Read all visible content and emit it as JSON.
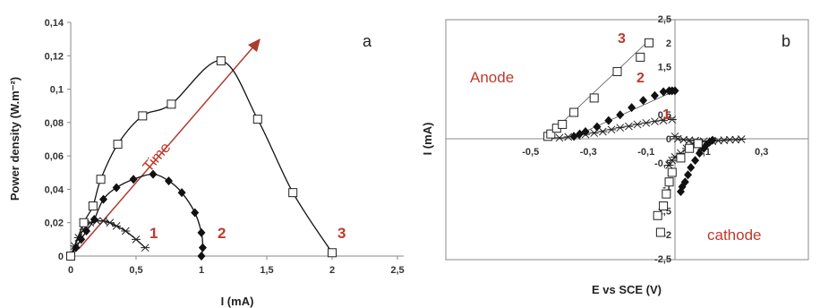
{
  "chart_data": [
    {
      "type": "scatter",
      "panel_label": "a",
      "xlabel": "I (mA)",
      "ylabel": "Power density (W.m⁻²)",
      "xlim": [
        0,
        2.5
      ],
      "ylim": [
        0,
        0.14
      ],
      "xticks": [
        "0",
        "0,5",
        "1",
        "1,5",
        "2",
        "2,5"
      ],
      "yticks": [
        "0",
        "0,02",
        "0,04",
        "0,06",
        "0,08",
        "0,1",
        "0,12",
        "0,14"
      ],
      "grid": false,
      "arrow_label": "Time",
      "series": [
        {
          "name": "1",
          "marker": "star",
          "smooth": true,
          "x": [
            0,
            0.03,
            0.06,
            0.1,
            0.15,
            0.2,
            0.25,
            0.3,
            0.35,
            0.42,
            0.5,
            0.57
          ],
          "y": [
            0,
            0.006,
            0.011,
            0.016,
            0.02,
            0.021,
            0.021,
            0.02,
            0.018,
            0.015,
            0.01,
            0.005
          ]
        },
        {
          "name": "2",
          "marker": "diamond",
          "smooth": true,
          "x": [
            0,
            0.04,
            0.08,
            0.12,
            0.18,
            0.25,
            0.35,
            0.48,
            0.63,
            0.75,
            0.85,
            0.95,
            1.0,
            1.01,
            1.0
          ],
          "y": [
            0,
            0.005,
            0.01,
            0.015,
            0.022,
            0.034,
            0.041,
            0.046,
            0.049,
            0.045,
            0.038,
            0.026,
            0.014,
            0.005,
            0
          ]
        },
        {
          "name": "3",
          "marker": "square",
          "smooth": true,
          "x": [
            0,
            0.1,
            0.17,
            0.23,
            0.36,
            0.55,
            0.77,
            1.15,
            1.43,
            1.7,
            2.0
          ],
          "y": [
            0,
            0.02,
            0.03,
            0.046,
            0.067,
            0.084,
            0.091,
            0.117,
            0.082,
            0.038,
            0.002
          ]
        }
      ]
    },
    {
      "type": "scatter",
      "panel_label": "b",
      "xlabel": "E vs SCE (V)",
      "ylabel": "I (mA)",
      "xlim": [
        -0.5,
        0.3
      ],
      "ylim": [
        -2.5,
        2.5
      ],
      "xticks": [
        "-0,5",
        "-0,3",
        "-0,1",
        "0,1",
        "0,3"
      ],
      "yticks": [
        "2,5",
        "2",
        "1,5",
        "1",
        "0,5",
        "0",
        "-0,5",
        "-1",
        "-1,5",
        "-2",
        "-2,5"
      ],
      "grid": false,
      "annotations": [
        "Anode",
        "cathode"
      ],
      "series": [
        {
          "name": "1",
          "marker": "star",
          "x": [
            -0.4,
            -0.37,
            -0.34,
            -0.31,
            -0.28,
            -0.25,
            -0.22,
            -0.19,
            -0.16,
            -0.13,
            -0.1,
            -0.07,
            -0.04,
            -0.01,
            0.0,
            0.01,
            0.03,
            0.05,
            0.07,
            0.1,
            0.13,
            0.15,
            0.17,
            0.19,
            0.21,
            0.23,
            -0.02,
            -0.01,
            0.0,
            0.02,
            0.04,
            0.06
          ],
          "y": [
            0.02,
            0.04,
            0.06,
            0.09,
            0.12,
            0.15,
            0.19,
            0.23,
            0.26,
            0.3,
            0.33,
            0.36,
            0.38,
            0.4,
            0.05,
            0.0,
            -0.02,
            -0.03,
            -0.04,
            -0.05,
            -0.05,
            -0.04,
            -0.03,
            -0.02,
            -0.02,
            -0.01,
            -0.55,
            -0.45,
            -0.38,
            -0.3,
            -0.2,
            -0.12
          ]
        },
        {
          "name": "2",
          "marker": "diamond",
          "x": [
            -0.35,
            -0.33,
            -0.31,
            -0.27,
            -0.23,
            -0.19,
            -0.15,
            -0.11,
            -0.07,
            -0.04,
            -0.02,
            -0.01,
            0.0,
            0.02,
            0.025,
            0.035,
            0.045,
            0.055,
            0.07,
            0.085,
            0.1,
            0.11,
            0.12,
            0.13
          ],
          "y": [
            0.05,
            0.1,
            0.15,
            0.25,
            0.38,
            0.5,
            0.65,
            0.8,
            0.9,
            0.98,
            1.0,
            1.0,
            1.0,
            -1.1,
            -1.0,
            -0.9,
            -0.75,
            -0.6,
            -0.45,
            -0.3,
            -0.2,
            -0.12,
            -0.07,
            -0.03
          ]
        },
        {
          "name": "3",
          "marker": "square",
          "x": [
            -0.44,
            -0.43,
            -0.41,
            -0.39,
            -0.35,
            -0.28,
            -0.2,
            -0.12,
            -0.09,
            -0.06,
            -0.05,
            -0.04,
            -0.03,
            -0.02,
            -0.01,
            0.02,
            0.05,
            0.08
          ],
          "y": [
            0.05,
            0.1,
            0.22,
            0.3,
            0.55,
            0.85,
            1.4,
            1.7,
            2.0,
            -1.6,
            -1.95,
            -1.4,
            -1.15,
            -0.9,
            -0.7,
            -0.4,
            -0.2,
            -0.1
          ]
        }
      ]
    }
  ]
}
